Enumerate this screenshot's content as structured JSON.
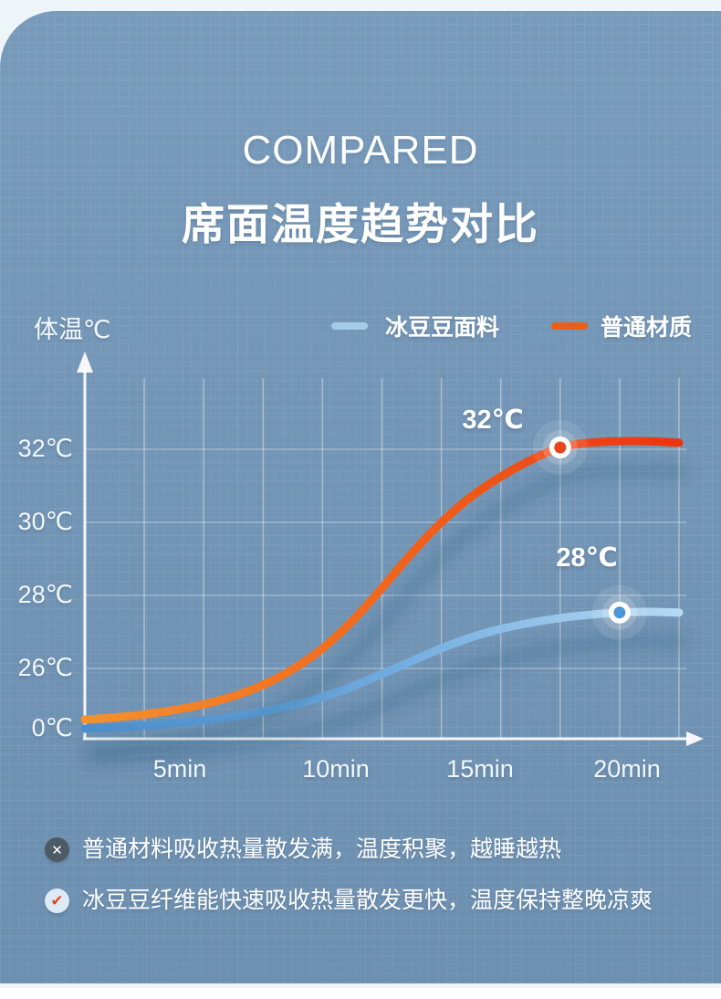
{
  "header": {
    "title_en": "COMPARED",
    "title_zh": "席面温度趋势对比"
  },
  "chart": {
    "y_axis_title": "体温℃",
    "legend": [
      {
        "label": "冰豆豆面料",
        "color": "#a5cbe9"
      },
      {
        "label": "普通材质",
        "color": "#e8611c"
      }
    ],
    "annotations": [
      {
        "text": "32℃"
      },
      {
        "text": "28℃"
      }
    ]
  },
  "chart_data": {
    "type": "line",
    "title": "席面温度趋势对比",
    "ylabel": "体温℃",
    "x_unit": "min",
    "grid": true,
    "legend_position": "top",
    "x_ticks": [
      "5min",
      "10min",
      "15min",
      "20min"
    ],
    "x_tick_minutes": [
      5,
      10,
      15,
      20
    ],
    "y_ticks": [
      {
        "label": "32℃",
        "value": 32
      },
      {
        "label": "30℃",
        "value": 30
      },
      {
        "label": "28℃",
        "value": 28
      },
      {
        "label": "26℃",
        "value": 26
      },
      {
        "label": "0℃",
        "value": 0
      }
    ],
    "x_minutes": [
      0,
      1,
      2,
      3,
      4,
      5,
      6,
      7,
      8,
      9,
      10,
      11,
      12,
      13,
      14,
      15,
      16,
      17,
      18,
      19,
      20
    ],
    "series": [
      {
        "name": "冰豆豆面料",
        "stops": [
          "#4b8fcd",
          "#6faade",
          "#b7daf3"
        ],
        "values": [
          24.35,
          24.38,
          24.43,
          24.5,
          24.58,
          24.68,
          24.82,
          25.0,
          25.22,
          25.5,
          25.85,
          26.2,
          26.55,
          26.85,
          27.08,
          27.25,
          27.38,
          27.47,
          27.53,
          27.55,
          27.53
        ]
      },
      {
        "name": "普通材质",
        "stops": [
          "#f5912e",
          "#f0661c",
          "#ed3310"
        ],
        "values": [
          24.6,
          24.66,
          24.74,
          24.86,
          25.02,
          25.24,
          25.55,
          25.98,
          26.55,
          27.3,
          28.2,
          29.15,
          30.0,
          30.7,
          31.25,
          31.7,
          32.05,
          32.18,
          32.22,
          32.22,
          32.18
        ]
      }
    ],
    "markers": [
      {
        "series": "普通材质",
        "minute": 16,
        "value": 32.05,
        "label": "32℃",
        "dot_color": "#e8431a"
      },
      {
        "series": "冰豆豆面料",
        "minute": 18,
        "value": 27.53,
        "label": "28℃",
        "dot_color": "#4e97da"
      }
    ]
  },
  "notes": [
    {
      "icon": "x-circle",
      "glyph": "✕",
      "text": "普通材料吸收热量散发满，温度积聚，越睡越热",
      "icon_bg": "#4e5a64",
      "icon_color": "#ffffff"
    },
    {
      "icon": "check-circle",
      "glyph": "✔",
      "text": "冰豆豆纤维能快速吸收热量散发更快，温度保持整晚凉爽",
      "icon_bg": "#ddebf6",
      "icon_color": "#e2491c"
    }
  ],
  "colors": {
    "outer_bg": "#eef5f8",
    "panel_bg": "#7195b7",
    "axis": "#ffffff",
    "gridline": "#ffffff"
  }
}
